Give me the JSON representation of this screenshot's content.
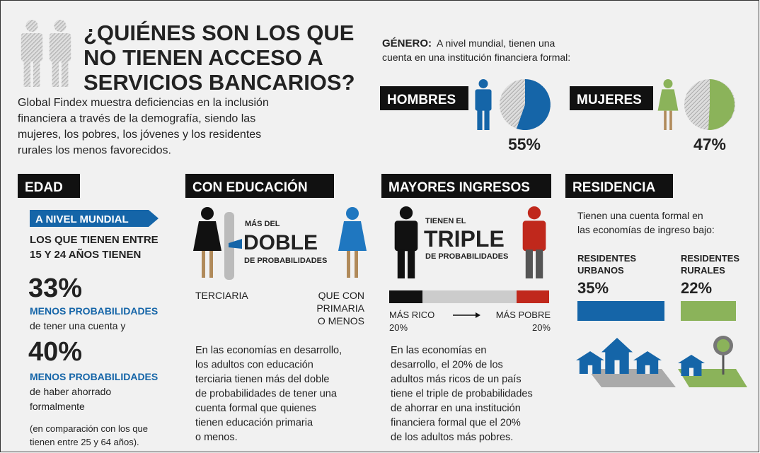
{
  "header": {
    "title": [
      "¿QUIÉNES SON LOS QUE",
      "NO TIENEN ACCESO A",
      "SERVICIOS BANCARIOS?"
    ],
    "intro": [
      "Global Findex muestra deficiencias en la inclusión",
      "financiera a través de la demografía, siendo las",
      "mujeres, los pobres, los jóvenes y los residentes",
      "rurales los menos favorecidos."
    ]
  },
  "gender": {
    "label": "GÉNERO:",
    "intro": [
      "A nivel mundial, tienen una",
      "cuenta en una institución financiera formal:"
    ],
    "men": {
      "label": "HOMBRES",
      "value": "55%"
    },
    "women": {
      "label": "MUJERES",
      "value": "47%"
    }
  },
  "age": {
    "heading": "EDAD",
    "tag": "A NIVEL MUNDIAL",
    "lead": [
      "LOS QUE TIENEN ENTRE",
      "15 Y 24 AÑOS TIENEN"
    ],
    "stat1": {
      "value": "33%",
      "emphasis": "MENOS PROBABILIDADES",
      "text": [
        "de tener una cuenta y"
      ]
    },
    "stat2": {
      "value": "40%",
      "emphasis": "MENOS PROBABILIDADES",
      "text": [
        "de haber ahorrado",
        "formalmente"
      ]
    },
    "note": [
      "(en comparación con los que",
      "tienen entre 25 y 64 años)."
    ]
  },
  "education": {
    "heading": "CON EDUCACIÓN",
    "pre": "MÁS DEL",
    "big": "DOBLE",
    "post": "DE PROBABILIDADES",
    "left": "TERCIARIA",
    "right": [
      "QUE CON",
      "PRIMARIA",
      "O MENOS"
    ],
    "text": [
      "En las economías en desarrollo,",
      "los adultos con educación",
      "terciaria tienen más del doble",
      "de probabilidades de tener una",
      "cuenta formal que quienes",
      "tienen educación primaria",
      "o menos."
    ]
  },
  "income": {
    "heading": "MAYORES INGRESOS",
    "pre": "TIENEN EL",
    "big": "TRIPLE",
    "post": "DE PROBABILIDADES",
    "rich": [
      "MÁS RICO",
      "20%"
    ],
    "poor": [
      "MÁS POBRE",
      "20%"
    ],
    "text": [
      "En las economías en",
      "desarrollo, el 20% de los",
      "adultos más ricos de un país",
      "tiene el triple de probabilidades",
      "de ahorrar en una institución",
      "financiera formal que el 20%",
      "de los adultos más pobres."
    ]
  },
  "residence": {
    "heading": "RESIDENCIA",
    "intro": [
      "Tienen una cuenta formal en",
      "las economías de ingreso bajo:"
    ],
    "urban": {
      "label": [
        "RESIDENTES",
        "URBANOS"
      ],
      "value": "35%"
    },
    "rural": {
      "label": [
        "RESIDENTES",
        "RURALES"
      ],
      "value": "22%"
    }
  }
}
